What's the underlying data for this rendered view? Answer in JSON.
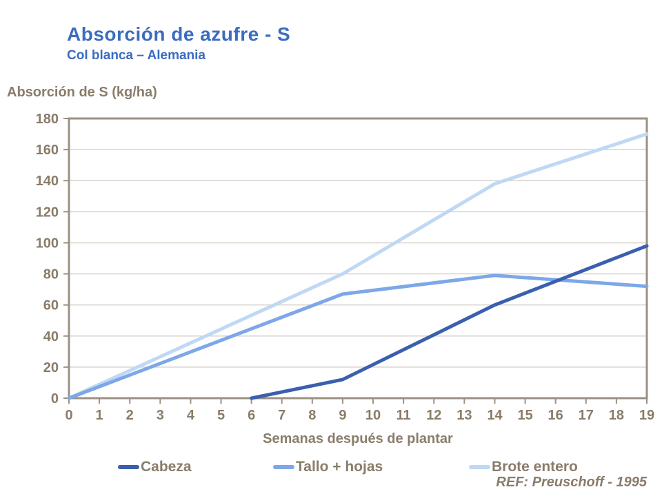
{
  "header": {
    "title": "Absorción de azufre - S",
    "subtitle": "Col blanca – Alemania"
  },
  "ref_note": "REF: Preuschoff - 1995",
  "colors": {
    "title_blue": "#3B6CBE",
    "text_taupe": "#8A7C6A",
    "axis_frame": "#9C9082",
    "gridline": "#D7D3CB",
    "background": "#FFFFFF"
  },
  "chart_data": {
    "type": "line",
    "title": "Absorción de azufre - S",
    "subtitle": "Col blanca – Alemania",
    "xlabel": "Semanas después de plantar",
    "ylabel": "Absorción de S (kg/ha)",
    "xlim": [
      0,
      19
    ],
    "ylim": [
      0,
      180
    ],
    "x_tick_step": 1,
    "y_tick_step": 20,
    "grid": "horizontal-only",
    "legend_position": "bottom",
    "line_width": 5,
    "series": [
      {
        "name": "Cabeza",
        "color": "#3A5FAE",
        "points": [
          [
            6,
            0
          ],
          [
            9,
            12
          ],
          [
            14,
            60
          ],
          [
            19,
            98
          ]
        ]
      },
      {
        "name": "Tallo + hojas",
        "color": "#7DA7E8",
        "points": [
          [
            0,
            0
          ],
          [
            9,
            67
          ],
          [
            14,
            79
          ],
          [
            19,
            72
          ]
        ]
      },
      {
        "name": "Brote entero",
        "color": "#BFD8F4",
        "points": [
          [
            0,
            0
          ],
          [
            9,
            80
          ],
          [
            14,
            138
          ],
          [
            19,
            170
          ]
        ]
      }
    ]
  }
}
